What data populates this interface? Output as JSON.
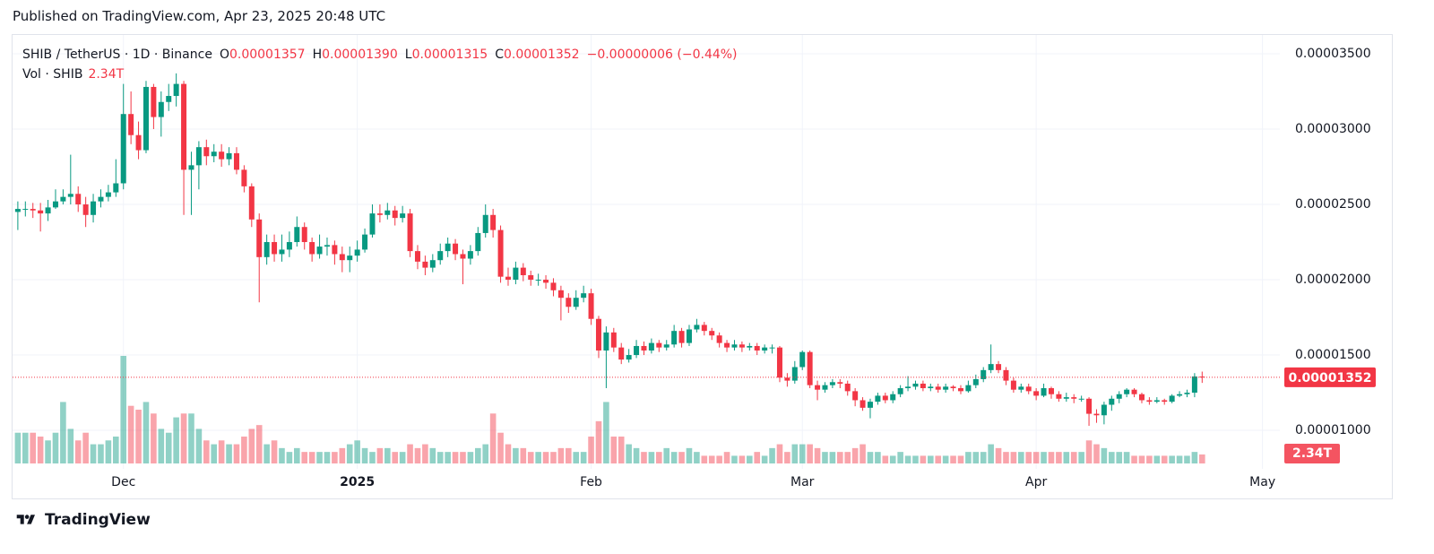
{
  "header": "Published on TradingView.com, Apr 23, 2025 20:48 UTC",
  "footer": "TradingView",
  "chart_data": {
    "type": "candlestick",
    "title": "SHIB / TetherUS · 1D · Binance",
    "ohlc": [
      {
        "key": "O",
        "value": "0.00001357"
      },
      {
        "key": "H",
        "value": "0.00001390"
      },
      {
        "key": "L",
        "value": "0.00001315"
      },
      {
        "key": "C",
        "value": "0.00001352"
      }
    ],
    "change": "−0.00000006 (−0.44%)",
    "volume_title": "Vol · SHIB",
    "volume_label": "2.34T",
    "last_price_label": "0.00001352",
    "up_color": "#089981",
    "down_color": "#f23645",
    "grid": true,
    "xlim": [
      -0.7,
      167.3
    ],
    "xticks": [
      {
        "value": 14,
        "label": "Dec"
      },
      {
        "value": 45,
        "label": "2025"
      },
      {
        "value": 76,
        "label": "Feb"
      },
      {
        "value": 104,
        "label": "Mar"
      },
      {
        "value": 135,
        "label": "Apr"
      },
      {
        "value": 165,
        "label": "May"
      }
    ],
    "ylim": [
      5.54e-06,
      3.619e-05
    ],
    "yticks": [
      {
        "value": 1e-05,
        "label": "0.00001000"
      },
      {
        "value": 1.5e-05,
        "label": "0.00001500"
      },
      {
        "value": 2e-05,
        "label": "0.00002000"
      },
      {
        "value": 2.5e-05,
        "label": "0.00002500"
      },
      {
        "value": 3e-05,
        "label": "0.00003000"
      },
      {
        "value": 3.5e-05,
        "label": "0.00003500"
      }
    ],
    "open": [
      2.45e-05,
      2.47e-05,
      2.47e-05,
      2.46e-05,
      2.44e-05,
      2.48e-05,
      2.52e-05,
      2.55e-05,
      2.57e-05,
      2.5e-05,
      2.43e-05,
      2.52e-05,
      2.55e-05,
      2.58e-05,
      2.64e-05,
      3.1e-05,
      2.96e-05,
      2.86e-05,
      3.28e-05,
      3.08e-05,
      3.18e-05,
      3.22e-05,
      3.3e-05,
      2.73e-05,
      2.76e-05,
      2.88e-05,
      2.82e-05,
      2.85e-05,
      2.8e-05,
      2.84e-05,
      2.73e-05,
      2.62e-05,
      2.4e-05,
      2.15e-05,
      2.25e-05,
      2.17e-05,
      2.2e-05,
      2.25e-05,
      2.35e-05,
      2.25e-05,
      2.17e-05,
      2.22e-05,
      2.23e-05,
      2.17e-05,
      2.13e-05,
      2.16e-05,
      2.2e-05,
      2.3e-05,
      2.44e-05,
      2.43e-05,
      2.46e-05,
      2.41e-05,
      2.44e-05,
      2.19e-05,
      2.12e-05,
      2.08e-05,
      2.13e-05,
      2.19e-05,
      2.24e-05,
      2.17e-05,
      2.14e-05,
      2.19e-05,
      2.31e-05,
      2.43e-05,
      2.33e-05,
      2.02e-05,
      2e-05,
      2.08e-05,
      2.03e-05,
      2e-05,
      2e-05,
      1.98e-05,
      1.93e-05,
      1.88e-05,
      1.82e-05,
      1.88e-05,
      1.91e-05,
      1.74e-05,
      1.53e-05,
      1.65e-05,
      1.55e-05,
      1.47e-05,
      1.5e-05,
      1.56e-05,
      1.53e-05,
      1.58e-05,
      1.55e-05,
      1.57e-05,
      1.66e-05,
      1.58e-05,
      1.67e-05,
      1.7e-05,
      1.66e-05,
      1.63e-05,
      1.58e-05,
      1.55e-05,
      1.57e-05,
      1.55e-05,
      1.56e-05,
      1.53e-05,
      1.55e-05,
      1.55e-05,
      1.35e-05,
      1.33e-05,
      1.42e-05,
      1.52e-05,
      1.3e-05,
      1.27e-05,
      1.3e-05,
      1.32e-05,
      1.31e-05,
      1.26e-05,
      1.2e-05,
      1.15e-05,
      1.19e-05,
      1.23e-05,
      1.2e-05,
      1.24e-05,
      1.28e-05,
      1.29e-05,
      1.31e-05,
      1.28e-05,
      1.29e-05,
      1.27e-05,
      1.29e-05,
      1.28e-05,
      1.26e-05,
      1.3e-05,
      1.34e-05,
      1.4e-05,
      1.44e-05,
      1.4e-05,
      1.33e-05,
      1.27e-05,
      1.29e-05,
      1.26e-05,
      1.23e-05,
      1.28e-05,
      1.24e-05,
      1.21e-05,
      1.22e-05,
      1.21e-05,
      1.21e-05,
      1.11e-05,
      1.1e-05,
      1.17e-05,
      1.21e-05,
      1.24e-05,
      1.27e-05,
      1.24e-05,
      1.2e-05,
      1.19e-05,
      1.2e-05,
      1.19e-05,
      1.23e-05,
      1.24e-05,
      1.25e-05,
      1.357e-05
    ],
    "high": [
      2.52e-05,
      2.52e-05,
      2.51e-05,
      2.51e-05,
      2.53e-05,
      2.6e-05,
      2.6e-05,
      2.83e-05,
      2.62e-05,
      2.55e-05,
      2.57e-05,
      2.6e-05,
      2.63e-05,
      2.8e-05,
      3.3e-05,
      3.25e-05,
      3.05e-05,
      3.32e-05,
      3.3e-05,
      3.25e-05,
      3.3e-05,
      3.37e-05,
      3.32e-05,
      2.85e-05,
      2.92e-05,
      2.93e-05,
      2.9e-05,
      2.9e-05,
      2.88e-05,
      2.88e-05,
      2.76e-05,
      2.64e-05,
      2.44e-05,
      2.3e-05,
      2.3e-05,
      2.3e-05,
      2.32e-05,
      2.42e-05,
      2.38e-05,
      2.28e-05,
      2.3e-05,
      2.28e-05,
      2.26e-05,
      2.22e-05,
      2.22e-05,
      2.26e-05,
      2.34e-05,
      2.5e-05,
      2.5e-05,
      2.51e-05,
      2.49e-05,
      2.49e-05,
      2.47e-05,
      2.23e-05,
      2.16e-05,
      2.17e-05,
      2.24e-05,
      2.28e-05,
      2.27e-05,
      2.2e-05,
      2.23e-05,
      2.35e-05,
      2.5e-05,
      2.47e-05,
      2.36e-05,
      2.08e-05,
      2.12e-05,
      2.11e-05,
      2.06e-05,
      2.04e-05,
      2.03e-05,
      2.01e-05,
      1.96e-05,
      1.91e-05,
      1.93e-05,
      1.96e-05,
      1.94e-05,
      1.76e-05,
      1.69e-05,
      1.68e-05,
      1.58e-05,
      1.54e-05,
      1.6e-05,
      1.59e-05,
      1.61e-05,
      1.6e-05,
      1.6e-05,
      1.7e-05,
      1.68e-05,
      1.7e-05,
      1.74e-05,
      1.72e-05,
      1.68e-05,
      1.65e-05,
      1.6e-05,
      1.6e-05,
      1.59e-05,
      1.58e-05,
      1.58e-05,
      1.57e-05,
      1.57e-05,
      1.56e-05,
      1.38e-05,
      1.46e-05,
      1.53e-05,
      1.53e-05,
      1.33e-05,
      1.32e-05,
      1.34e-05,
      1.34e-05,
      1.33e-05,
      1.28e-05,
      1.22e-05,
      1.21e-05,
      1.25e-05,
      1.25e-05,
      1.26e-05,
      1.3e-05,
      1.36e-05,
      1.33e-05,
      1.33e-05,
      1.31e-05,
      1.31e-05,
      1.31e-05,
      1.3e-05,
      1.3e-05,
      1.33e-05,
      1.37e-05,
      1.42e-05,
      1.57e-05,
      1.46e-05,
      1.42e-05,
      1.35e-05,
      1.31e-05,
      1.31e-05,
      1.28e-05,
      1.31e-05,
      1.29e-05,
      1.26e-05,
      1.25e-05,
      1.24e-05,
      1.23e-05,
      1.22e-05,
      1.14e-05,
      1.19e-05,
      1.23e-05,
      1.26e-05,
      1.28e-05,
      1.28e-05,
      1.25e-05,
      1.22e-05,
      1.22e-05,
      1.21e-05,
      1.24e-05,
      1.26e-05,
      1.27e-05,
      1.38e-05,
      1.39e-05
    ],
    "low": [
      2.33e-05,
      2.42e-05,
      2.41e-05,
      2.32e-05,
      2.39e-05,
      2.47e-05,
      2.5e-05,
      2.5e-05,
      2.45e-05,
      2.35e-05,
      2.38e-05,
      2.48e-05,
      2.52e-05,
      2.55e-05,
      2.6e-05,
      2.9e-05,
      2.8e-05,
      2.84e-05,
      3e-05,
      2.95e-05,
      3.12e-05,
      3.15e-05,
      2.43e-05,
      2.43e-05,
      2.6e-05,
      2.76e-05,
      2.78e-05,
      2.75e-05,
      2.76e-05,
      2.7e-05,
      2.58e-05,
      2.35e-05,
      1.85e-05,
      2.1e-05,
      2.12e-05,
      2.12e-05,
      2.15e-05,
      2.22e-05,
      2.2e-05,
      2.12e-05,
      2.14e-05,
      2.16e-05,
      2.1e-05,
      2.05e-05,
      2.05e-05,
      2.12e-05,
      2.18e-05,
      2.28e-05,
      2.38e-05,
      2.4e-05,
      2.36e-05,
      2.38e-05,
      2.15e-05,
      2.07e-05,
      2.03e-05,
      2.05e-05,
      2.1e-05,
      2.15e-05,
      2.13e-05,
      1.97e-05,
      2.1e-05,
      2.16e-05,
      2.28e-05,
      2.28e-05,
      1.98e-05,
      1.96e-05,
      1.97e-05,
      1.99e-05,
      1.96e-05,
      1.96e-05,
      1.94e-05,
      1.89e-05,
      1.73e-05,
      1.78e-05,
      1.8e-05,
      1.85e-05,
      1.7e-05,
      1.48e-05,
      1.28e-05,
      1.52e-05,
      1.44e-05,
      1.45e-05,
      1.48e-05,
      1.5e-05,
      1.51e-05,
      1.52e-05,
      1.53e-05,
      1.55e-05,
      1.55e-05,
      1.56e-05,
      1.65e-05,
      1.63e-05,
      1.6e-05,
      1.55e-05,
      1.52e-05,
      1.53e-05,
      1.52e-05,
      1.53e-05,
      1.5e-05,
      1.51e-05,
      1.51e-05,
      1.32e-05,
      1.29e-05,
      1.31e-05,
      1.4e-05,
      1.28e-05,
      1.2e-05,
      1.25e-05,
      1.28e-05,
      1.28e-05,
      1.23e-05,
      1.16e-05,
      1.13e-05,
      1.08e-05,
      1.17e-05,
      1.18e-05,
      1.18e-05,
      1.22e-05,
      1.26e-05,
      1.27e-05,
      1.26e-05,
      1.26e-05,
      1.25e-05,
      1.25e-05,
      1.26e-05,
      1.24e-05,
      1.25e-05,
      1.28e-05,
      1.32e-05,
      1.38e-05,
      1.38e-05,
      1.3e-05,
      1.25e-05,
      1.25e-05,
      1.24e-05,
      1.2e-05,
      1.22e-05,
      1.21e-05,
      1.19e-05,
      1.19e-05,
      1.18e-05,
      1.19e-05,
      1.03e-05,
      1.05e-05,
      1.04e-05,
      1.13e-05,
      1.18e-05,
      1.22e-05,
      1.22e-05,
      1.18e-05,
      1.17e-05,
      1.18e-05,
      1.17e-05,
      1.18e-05,
      1.22e-05,
      1.22e-05,
      1.22e-05,
      1.315e-05
    ],
    "close": [
      2.47e-05,
      2.47e-05,
      2.46e-05,
      2.44e-05,
      2.48e-05,
      2.52e-05,
      2.55e-05,
      2.57e-05,
      2.5e-05,
      2.43e-05,
      2.52e-05,
      2.55e-05,
      2.58e-05,
      2.64e-05,
      3.1e-05,
      2.96e-05,
      2.86e-05,
      3.28e-05,
      3.08e-05,
      3.18e-05,
      3.22e-05,
      3.3e-05,
      2.73e-05,
      2.76e-05,
      2.88e-05,
      2.82e-05,
      2.85e-05,
      2.8e-05,
      2.84e-05,
      2.73e-05,
      2.62e-05,
      2.4e-05,
      2.15e-05,
      2.25e-05,
      2.17e-05,
      2.2e-05,
      2.25e-05,
      2.35e-05,
      2.25e-05,
      2.17e-05,
      2.22e-05,
      2.23e-05,
      2.17e-05,
      2.13e-05,
      2.16e-05,
      2.2e-05,
      2.3e-05,
      2.44e-05,
      2.43e-05,
      2.46e-05,
      2.41e-05,
      2.44e-05,
      2.19e-05,
      2.12e-05,
      2.08e-05,
      2.13e-05,
      2.19e-05,
      2.24e-05,
      2.17e-05,
      2.14e-05,
      2.19e-05,
      2.31e-05,
      2.43e-05,
      2.33e-05,
      2.02e-05,
      2e-05,
      2.08e-05,
      2.03e-05,
      2e-05,
      2e-05,
      1.98e-05,
      1.93e-05,
      1.88e-05,
      1.82e-05,
      1.88e-05,
      1.91e-05,
      1.74e-05,
      1.53e-05,
      1.65e-05,
      1.55e-05,
      1.47e-05,
      1.5e-05,
      1.56e-05,
      1.53e-05,
      1.58e-05,
      1.55e-05,
      1.57e-05,
      1.66e-05,
      1.58e-05,
      1.67e-05,
      1.7e-05,
      1.66e-05,
      1.63e-05,
      1.58e-05,
      1.55e-05,
      1.57e-05,
      1.55e-05,
      1.56e-05,
      1.53e-05,
      1.55e-05,
      1.55e-05,
      1.35e-05,
      1.33e-05,
      1.42e-05,
      1.52e-05,
      1.3e-05,
      1.27e-05,
      1.3e-05,
      1.32e-05,
      1.31e-05,
      1.26e-05,
      1.2e-05,
      1.15e-05,
      1.19e-05,
      1.23e-05,
      1.2e-05,
      1.24e-05,
      1.28e-05,
      1.29e-05,
      1.31e-05,
      1.28e-05,
      1.29e-05,
      1.27e-05,
      1.29e-05,
      1.28e-05,
      1.26e-05,
      1.3e-05,
      1.34e-05,
      1.4e-05,
      1.44e-05,
      1.4e-05,
      1.33e-05,
      1.27e-05,
      1.29e-05,
      1.26e-05,
      1.23e-05,
      1.28e-05,
      1.24e-05,
      1.21e-05,
      1.22e-05,
      1.21e-05,
      1.21e-05,
      1.11e-05,
      1.1e-05,
      1.17e-05,
      1.21e-05,
      1.24e-05,
      1.27e-05,
      1.24e-05,
      1.2e-05,
      1.19e-05,
      1.2e-05,
      1.19e-05,
      1.23e-05,
      1.24e-05,
      1.25e-05,
      1.358e-05,
      1.352e-05
    ],
    "volume": [
      8,
      8,
      8,
      7,
      6,
      8,
      16,
      9,
      6,
      8,
      5,
      5,
      6,
      7,
      28,
      15,
      14,
      16,
      13,
      9,
      8,
      12,
      13,
      13,
      9,
      6,
      5,
      6,
      5,
      5,
      7,
      9,
      10,
      5,
      6,
      4,
      3,
      4,
      3,
      3,
      3,
      3,
      3,
      4,
      5,
      6,
      4,
      3,
      4,
      4,
      3,
      3,
      5,
      4,
      5,
      4,
      3,
      3,
      3,
      3,
      3,
      4,
      5,
      13,
      8,
      5,
      4,
      4,
      3,
      3,
      3,
      3,
      4,
      4,
      3,
      3,
      7,
      11,
      16,
      7,
      7,
      5,
      4,
      3,
      3,
      3,
      4,
      3,
      3,
      4,
      3,
      2,
      2,
      2,
      3,
      2,
      2,
      2,
      3,
      2,
      4,
      5,
      3,
      5,
      5,
      5,
      4,
      3,
      3,
      3,
      3,
      4,
      5,
      3,
      3,
      2,
      2,
      3,
      2,
      2,
      2,
      2,
      2,
      2,
      2,
      2,
      3,
      3,
      3,
      5,
      4,
      3,
      3,
      3,
      3,
      3,
      3,
      3,
      3,
      3,
      3,
      3,
      6,
      5,
      4,
      3,
      3,
      3,
      2,
      2,
      2,
      2,
      2,
      2,
      2,
      2,
      3,
      2.34
    ]
  }
}
